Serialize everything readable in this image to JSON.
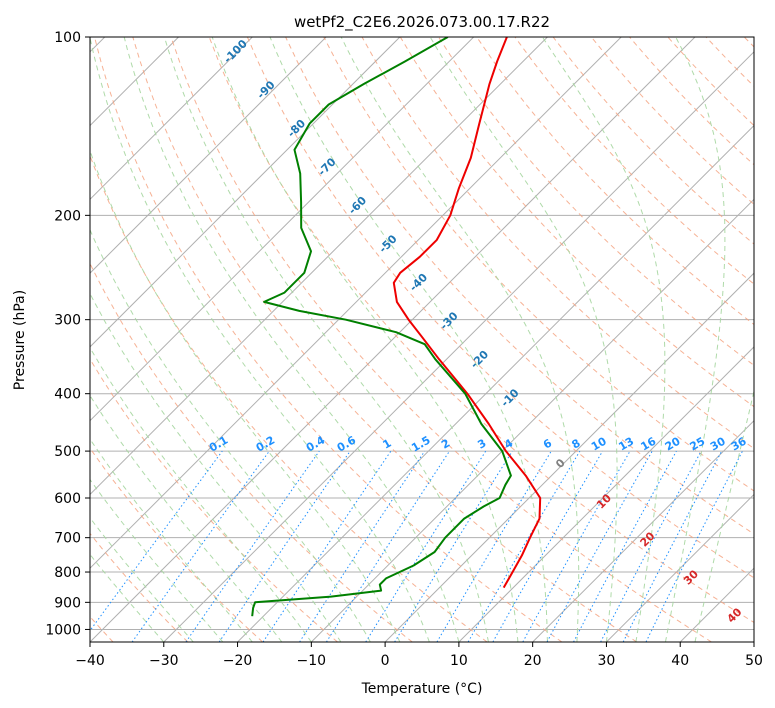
{
  "chart_data": {
    "type": "line",
    "title": "wetPf2_C2E6.2026.073.00.17.R22",
    "xlabel": "Temperature (°C)",
    "ylabel": "Pressure (hPa)",
    "xlim": [
      -40,
      50
    ],
    "ylim": [
      1050,
      100
    ],
    "y_scale": "log",
    "x_ticks": [
      -40,
      -30,
      -20,
      -10,
      0,
      10,
      20,
      30,
      40,
      50
    ],
    "x_tick_labels": [
      "−40",
      "−30",
      "−20",
      "−10",
      "0",
      "10",
      "20",
      "30",
      "40",
      "50"
    ],
    "y_ticks": [
      1000,
      900,
      800,
      700,
      600,
      500,
      400,
      300,
      200,
      100
    ],
    "y_tick_labels": [
      "1000",
      "900",
      "800",
      "700",
      "600",
      "500",
      "400",
      "300",
      "200",
      "100"
    ],
    "grid": true,
    "series": [
      {
        "role": "temperature",
        "color": "#ee0000",
        "points": [
          {
            "p": 850,
            "t": 8.7
          },
          {
            "p": 800,
            "t": 7.8
          },
          {
            "p": 750,
            "t": 6.8
          },
          {
            "p": 700,
            "t": 5.5
          },
          {
            "p": 650,
            "t": 4.2
          },
          {
            "p": 600,
            "t": 1.5
          },
          {
            "p": 550,
            "t": -3.5
          },
          {
            "p": 500,
            "t": -9.5
          },
          {
            "p": 450,
            "t": -15.5
          },
          {
            "p": 400,
            "t": -22.5
          },
          {
            "p": 350,
            "t": -31.0
          },
          {
            "p": 320,
            "t": -36.5
          },
          {
            "p": 300,
            "t": -40.5
          },
          {
            "p": 280,
            "t": -44.5
          },
          {
            "p": 260,
            "t": -47.5
          },
          {
            "p": 250,
            "t": -48.0
          },
          {
            "p": 235,
            "t": -47.5
          },
          {
            "p": 220,
            "t": -47.5
          },
          {
            "p": 200,
            "t": -49.0
          },
          {
            "p": 180,
            "t": -51.5
          },
          {
            "p": 160,
            "t": -54.0
          },
          {
            "p": 140,
            "t": -57.5
          },
          {
            "p": 120,
            "t": -61.5
          },
          {
            "p": 110,
            "t": -63.5
          },
          {
            "p": 100,
            "t": -65.5
          }
        ]
      },
      {
        "role": "dewpoint",
        "color": "#008000",
        "points": [
          {
            "p": 950,
            "t": -21.5
          },
          {
            "p": 920,
            "t": -22.5
          },
          {
            "p": 900,
            "t": -23.0
          },
          {
            "p": 880,
            "t": -13.5
          },
          {
            "p": 860,
            "t": -7.5
          },
          {
            "p": 840,
            "t": -8.5
          },
          {
            "p": 820,
            "t": -8.5
          },
          {
            "p": 780,
            "t": -6.5
          },
          {
            "p": 740,
            "t": -5.5
          },
          {
            "p": 700,
            "t": -6.0
          },
          {
            "p": 650,
            "t": -6.0
          },
          {
            "p": 620,
            "t": -5.0
          },
          {
            "p": 600,
            "t": -4.0
          },
          {
            "p": 570,
            "t": -5.0
          },
          {
            "p": 550,
            "t": -5.5
          },
          {
            "p": 500,
            "t": -10.0
          },
          {
            "p": 450,
            "t": -16.5
          },
          {
            "p": 400,
            "t": -22.8
          },
          {
            "p": 350,
            "t": -31.5
          },
          {
            "p": 330,
            "t": -35.0
          },
          {
            "p": 315,
            "t": -40.5
          },
          {
            "p": 300,
            "t": -49.0
          },
          {
            "p": 290,
            "t": -56.5
          },
          {
            "p": 280,
            "t": -62.5
          },
          {
            "p": 270,
            "t": -61.0
          },
          {
            "p": 250,
            "t": -61.0
          },
          {
            "p": 230,
            "t": -63.0
          },
          {
            "p": 210,
            "t": -67.5
          },
          {
            "p": 190,
            "t": -71.0
          },
          {
            "p": 170,
            "t": -75.0
          },
          {
            "p": 155,
            "t": -79.0
          },
          {
            "p": 140,
            "t": -80.5
          },
          {
            "p": 130,
            "t": -80.5
          },
          {
            "p": 120,
            "t": -78.5
          },
          {
            "p": 110,
            "t": -76.0
          },
          {
            "p": 100,
            "t": -73.5
          }
        ]
      }
    ],
    "mixing_ratio_labels": [
      "0.1",
      "0.2",
      "0.4",
      "0.6",
      "1",
      "1.5",
      "2",
      "3",
      "4",
      "6",
      "8",
      "10",
      "13",
      "16",
      "20",
      "25",
      "30",
      "36"
    ],
    "dry_adiabat_labels": [
      "-100",
      "-90",
      "-80",
      "-70",
      "-60",
      "-50",
      "-40",
      "-30",
      "-20",
      "-10"
    ],
    "moist_adiabat_labels": [
      "0",
      "10",
      "20",
      "30",
      "40"
    ]
  },
  "colors": {
    "temperature": "#ee0000",
    "dewpoint": "#008000",
    "dry_adiabat": "#f4a582",
    "moist_adiabat": "#a6d6a0",
    "mixing_ratio": "#1e90ff",
    "dry_label": "#1f77b4",
    "moist_label": "#d62728",
    "zero_label": "#808080",
    "isotherm_grid": "#b0b0b0"
  }
}
